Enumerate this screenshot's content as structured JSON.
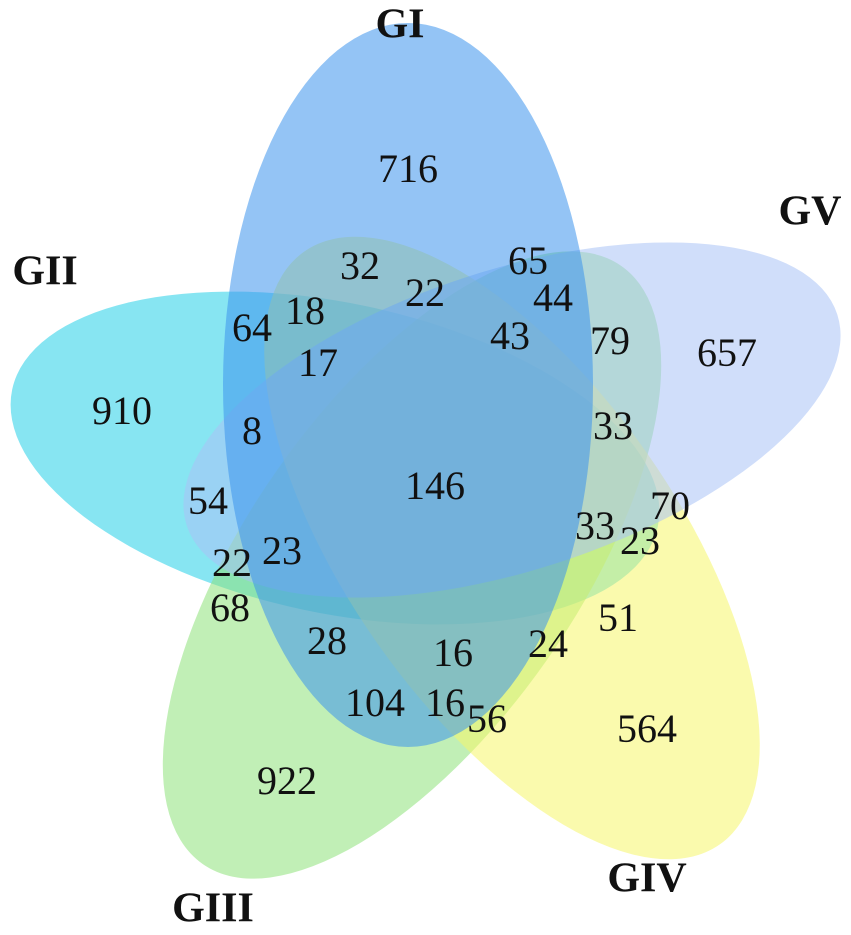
{
  "sets": [
    {
      "label": "GI",
      "color": "#3d93ec"
    },
    {
      "label": "GII",
      "color": "#25d0e8"
    },
    {
      "label": "GIII",
      "color": "#8ee27a"
    },
    {
      "label": "GIV",
      "color": "#f5f56a"
    },
    {
      "label": "GV",
      "color": "#a9c2f5"
    }
  ],
  "regions": [
    716,
    65,
    32,
    22,
    44,
    18,
    64,
    43,
    79,
    657,
    17,
    910,
    8,
    33,
    146,
    54,
    70,
    33,
    23,
    23,
    22,
    68,
    51,
    28,
    16,
    24,
    104,
    16,
    56,
    564,
    922
  ]
}
